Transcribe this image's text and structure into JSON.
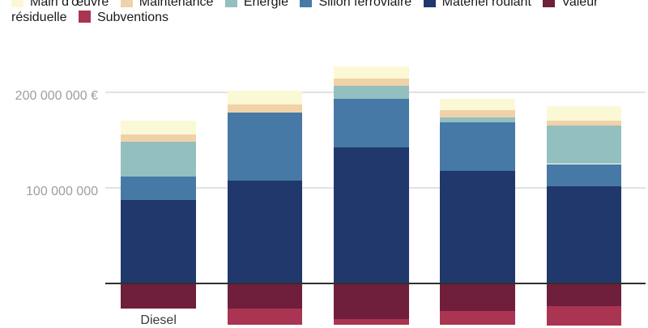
{
  "page": {
    "background": "#ffffff"
  },
  "chart_data": {
    "type": "bar",
    "stacked": true,
    "legend_position": "top",
    "grid": true,
    "value_unit": "€",
    "value_multiplier": 1000000,
    "ylim": [
      -45,
      240
    ],
    "categories": [
      "Diesel",
      "",
      "",
      "",
      ""
    ],
    "series": [
      {
        "name": "Main d'œuvre",
        "color": "#FBF8D6",
        "values": [
          14,
          15,
          13,
          12,
          16
        ]
      },
      {
        "name": "Maintenance",
        "color": "#F0D2A8",
        "values": [
          8,
          8,
          7,
          7,
          5
        ]
      },
      {
        "name": "Énergie",
        "color": "#94BFBF",
        "values": [
          36,
          0,
          14,
          5,
          40
        ]
      },
      {
        "name": "Sillon ferroviaire",
        "color": "#4779A7",
        "values": [
          25,
          71,
          51,
          51,
          23
        ]
      },
      {
        "name": "Matériel roulant",
        "color": "#20386B",
        "values": [
          87,
          108,
          142,
          118,
          102
        ]
      },
      {
        "name": "Valeur résiduelle",
        "color": "#6F1E3C",
        "values": [
          -26,
          -26,
          -37,
          -29,
          -24
        ]
      },
      {
        "name": "Subventions",
        "color": "#A93552",
        "values": [
          0,
          -17,
          -6,
          -14,
          -20
        ]
      }
    ],
    "y_ticks": [
      {
        "value": 200,
        "label": "200 000 000 €"
      },
      {
        "value": 100,
        "label": "100 000 000"
      }
    ],
    "colors": {
      "axis_text": "#9E9E9E",
      "gridline": "#E2E2E2",
      "zero_line": "#303030",
      "legend_text": "#1A1A1A",
      "category_text": "#3A3A3A"
    }
  }
}
